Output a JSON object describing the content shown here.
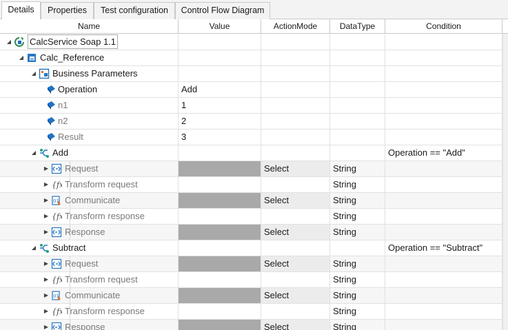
{
  "tabs": [
    {
      "label": "Details",
      "active": true
    },
    {
      "label": "Properties",
      "active": false
    },
    {
      "label": "Test configuration",
      "active": false
    },
    {
      "label": "Control Flow Diagram",
      "active": false
    }
  ],
  "columns": {
    "name": "Name",
    "value": "Value",
    "action_mode": "ActionMode",
    "data_type": "DataType",
    "condition": "Condition"
  },
  "rows": [
    {
      "level": 0,
      "kind": "root",
      "icon": "service-icon",
      "name": "CalcService Soap 1.1",
      "value": "",
      "action": "",
      "type": "",
      "condition": ""
    },
    {
      "level": 1,
      "kind": "module",
      "icon": "module-reference-icon",
      "name": "Calc_Reference",
      "value": "",
      "action": "",
      "type": "",
      "condition": ""
    },
    {
      "level": 2,
      "kind": "folder",
      "icon": "business-parameters-icon",
      "name": "Business Parameters",
      "value": "",
      "action": "",
      "type": "",
      "condition": ""
    },
    {
      "level": 3,
      "kind": "param",
      "icon": "parameter-icon",
      "name": "Operation",
      "value": "Add",
      "action": "",
      "type": "",
      "condition": ""
    },
    {
      "level": 3,
      "kind": "param",
      "icon": "parameter-icon",
      "name": "n1",
      "value": "1",
      "action": "",
      "type": "",
      "condition": ""
    },
    {
      "level": 3,
      "kind": "param",
      "icon": "parameter-icon",
      "name": "n2",
      "value": "2",
      "action": "",
      "type": "",
      "condition": ""
    },
    {
      "level": 3,
      "kind": "param",
      "icon": "parameter-icon",
      "name": "Result",
      "value": "3",
      "action": "",
      "type": "",
      "condition": ""
    },
    {
      "level": 2,
      "kind": "branch",
      "icon": "conditional-flow-icon",
      "name": "Add",
      "value": "",
      "action": "",
      "type": "",
      "condition": "Operation == \"Add\""
    },
    {
      "level": 3,
      "kind": "step",
      "icon": "request-icon",
      "name": "Request",
      "value": "",
      "gray": true,
      "action": "Select",
      "type": "String",
      "condition": ""
    },
    {
      "level": 3,
      "kind": "step",
      "icon": "function-icon",
      "name": "Transform request",
      "value": "",
      "gray": false,
      "action": "",
      "type": "String",
      "condition": ""
    },
    {
      "level": 3,
      "kind": "step",
      "icon": "communicate-icon",
      "name": "Communicate",
      "value": "",
      "gray": true,
      "action": "Select",
      "type": "String",
      "condition": ""
    },
    {
      "level": 3,
      "kind": "step",
      "icon": "function-icon",
      "name": "Transform response",
      "value": "",
      "gray": false,
      "action": "",
      "type": "String",
      "condition": ""
    },
    {
      "level": 3,
      "kind": "step",
      "icon": "response-icon",
      "name": "Response",
      "value": "",
      "gray": true,
      "action": "Select",
      "type": "String",
      "condition": ""
    },
    {
      "level": 2,
      "kind": "branch",
      "icon": "conditional-flow-icon",
      "name": "Subtract",
      "value": "",
      "action": "",
      "type": "",
      "condition": "Operation == \"Subtract\""
    },
    {
      "level": 3,
      "kind": "step",
      "icon": "request-icon",
      "name": "Request",
      "value": "",
      "gray": true,
      "action": "Select",
      "type": "String",
      "condition": ""
    },
    {
      "level": 3,
      "kind": "step",
      "icon": "function-icon",
      "name": "Transform request",
      "value": "",
      "gray": false,
      "action": "",
      "type": "String",
      "condition": ""
    },
    {
      "level": 3,
      "kind": "step",
      "icon": "communicate-icon",
      "name": "Communicate",
      "value": "",
      "gray": true,
      "action": "Select",
      "type": "String",
      "condition": ""
    },
    {
      "level": 3,
      "kind": "step",
      "icon": "function-icon",
      "name": "Transform response",
      "value": "",
      "gray": false,
      "action": "",
      "type": "String",
      "condition": ""
    },
    {
      "level": 3,
      "kind": "step",
      "icon": "response-icon",
      "name": "Response",
      "value": "",
      "gray": true,
      "action": "Select",
      "type": "String",
      "condition": ""
    }
  ]
}
